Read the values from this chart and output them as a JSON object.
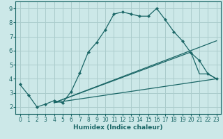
{
  "xlabel": "Humidex (Indice chaleur)",
  "bg_color": "#cce8e8",
  "grid_color": "#aacccc",
  "line_color": "#1a6666",
  "xlim": [
    -0.5,
    23.5
  ],
  "ylim": [
    1.5,
    9.5
  ],
  "xticks": [
    0,
    1,
    2,
    3,
    4,
    5,
    6,
    7,
    8,
    9,
    10,
    11,
    12,
    13,
    14,
    15,
    16,
    17,
    18,
    19,
    20,
    21,
    22,
    23
  ],
  "yticks": [
    2,
    3,
    4,
    5,
    6,
    7,
    8,
    9
  ],
  "lines": [
    {
      "x": [
        0,
        1,
        2,
        3,
        4,
        5,
        6,
        7,
        8,
        9,
        10,
        11,
        12,
        13,
        14,
        15,
        16,
        17,
        18,
        19,
        20,
        21,
        22,
        23
      ],
      "y": [
        3.6,
        2.85,
        2.0,
        2.2,
        2.45,
        2.3,
        3.1,
        4.4,
        5.9,
        6.6,
        7.5,
        8.6,
        8.75,
        8.6,
        8.45,
        8.45,
        9.0,
        8.2,
        7.35,
        6.7,
        5.85,
        5.3,
        4.35,
        4.0
      ],
      "markers": true
    },
    {
      "x": [
        4,
        23
      ],
      "y": [
        2.3,
        6.7
      ],
      "markers": false
    },
    {
      "x": [
        4,
        20,
        21,
        22,
        23
      ],
      "y": [
        2.3,
        5.9,
        4.35,
        4.35,
        4.0
      ],
      "markers": false
    },
    {
      "x": [
        4,
        23
      ],
      "y": [
        2.3,
        4.0
      ],
      "markers": false
    }
  ]
}
